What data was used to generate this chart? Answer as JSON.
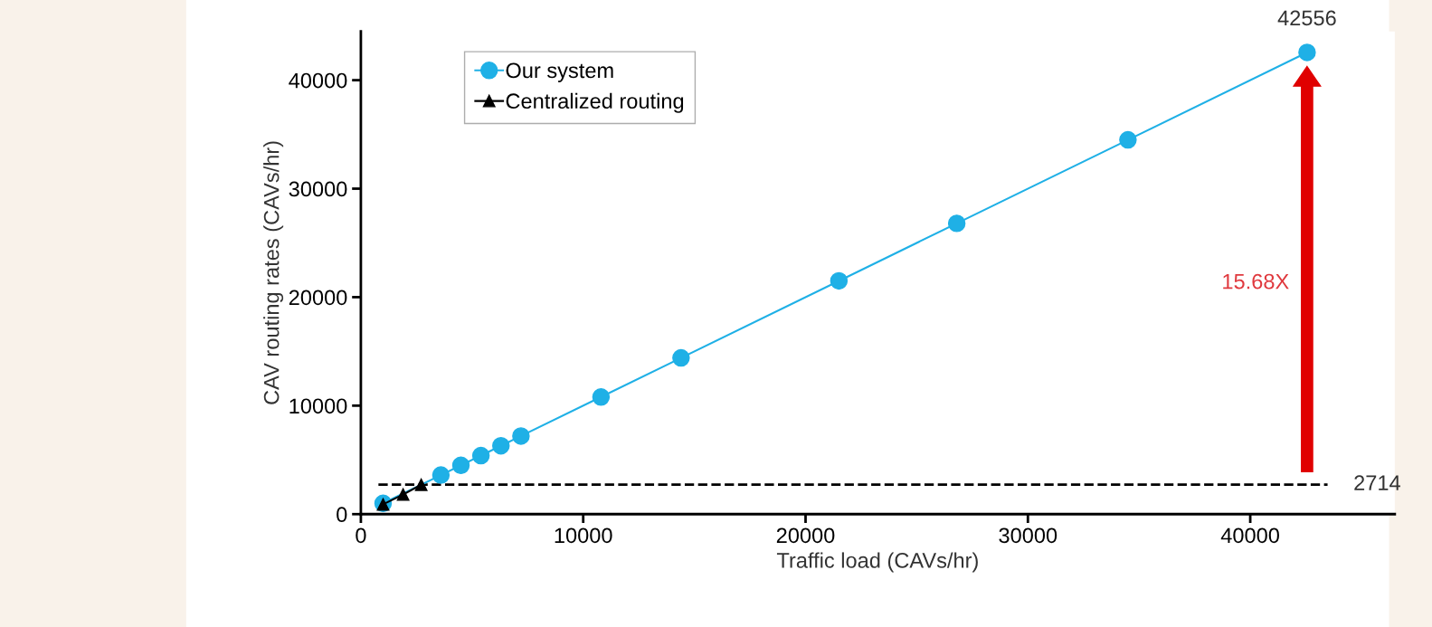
{
  "chart_data": {
    "type": "line",
    "xlabel": "Traffic load (CAVs/hr)",
    "ylabel": "CAV routing rates (CAVs/hr)",
    "series": [
      {
        "name": "Our system",
        "color": "#1fb0e6",
        "marker": "circle",
        "x": [
          1000,
          3600,
          4500,
          5400,
          6300,
          7200,
          10800,
          14400,
          21500,
          26800,
          34500,
          42556
        ],
        "values": [
          1000,
          3600,
          4500,
          5400,
          6300,
          7200,
          10800,
          14400,
          21500,
          26800,
          34500,
          42556
        ]
      },
      {
        "name": "Centralized routing",
        "color": "#000000",
        "marker": "triangle",
        "x": [
          1000,
          1900,
          2714
        ],
        "values": [
          900,
          1800,
          2714
        ]
      }
    ],
    "xlim": [
      0,
      46500
    ],
    "ylim": [
      0,
      44500
    ],
    "xticks": [
      0,
      10000,
      20000,
      30000,
      40000
    ],
    "yticks": [
      0,
      10000,
      20000,
      30000,
      40000
    ],
    "ref_lines": [
      {
        "axis": "y",
        "value": 2714,
        "label": "2714",
        "color": "#000000",
        "line_style": "dashed"
      }
    ],
    "annotations": [
      {
        "text": "42556",
        "x": 42556,
        "y": 42556
      },
      "15.68X"
    ],
    "grid": false,
    "legend": "top left",
    "line_style": "solid"
  }
}
